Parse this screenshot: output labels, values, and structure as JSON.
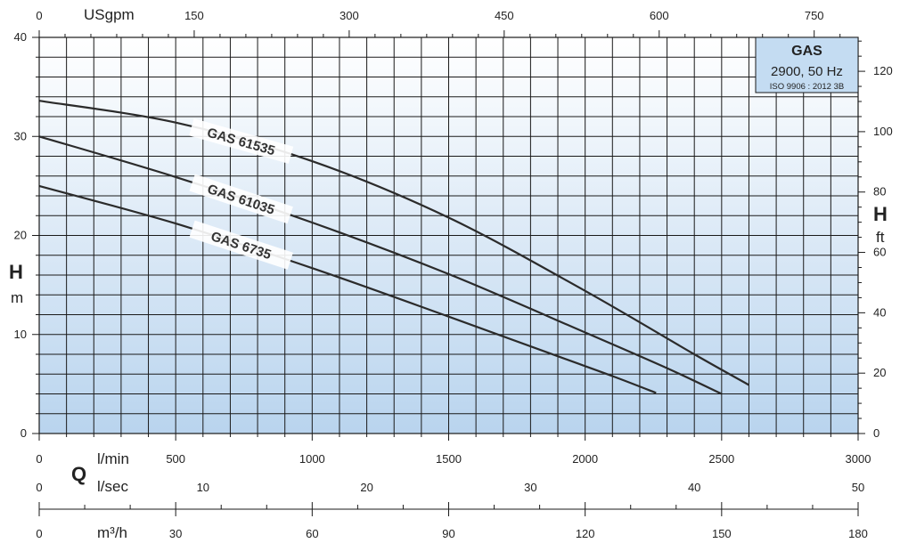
{
  "chart_data": {
    "type": "line",
    "title": "GAS",
    "subtitle": "2900, 50 Hz",
    "standard": "ISO 9906 : 2012 3B",
    "grid": true,
    "legend": "top-right",
    "x_primary": {
      "unit": "l/min",
      "range": [
        0,
        3000
      ],
      "ticks": [
        0,
        500,
        1000,
        1500,
        2000,
        2500,
        3000
      ]
    },
    "x_usgpm": {
      "unit": "USgpm",
      "ticks": [
        0,
        150,
        300,
        450,
        600,
        750
      ]
    },
    "x_lsec": {
      "unit": "l/sec",
      "ticks": [
        0,
        10,
        20,
        30,
        40,
        50
      ]
    },
    "x_m3h": {
      "unit": "m³/h",
      "ticks": [
        0,
        30,
        60,
        90,
        120,
        150,
        180
      ]
    },
    "y_left": {
      "letter": "H",
      "unit": "m",
      "range": [
        0,
        40
      ],
      "ticks": [
        0,
        10,
        20,
        30,
        40
      ]
    },
    "y_right": {
      "letter": "H",
      "unit": "ft",
      "ticks": [
        0,
        20,
        40,
        60,
        80,
        100,
        120
      ]
    },
    "q_letter": "Q",
    "series": [
      {
        "name": "GAS 61535",
        "x": [
          0,
          500,
          1000,
          1500,
          2000,
          2400,
          2600
        ],
        "y": [
          33.6,
          31.4,
          27.5,
          21.8,
          14.4,
          8.0,
          4.9
        ]
      },
      {
        "name": "GAS 61035",
        "x": [
          0,
          500,
          1000,
          1500,
          2000,
          2300,
          2500
        ],
        "y": [
          30.0,
          25.9,
          21.3,
          16.1,
          10.2,
          6.6,
          4.0
        ]
      },
      {
        "name": "GAS 6735",
        "x": [
          0,
          500,
          1000,
          1500,
          1900,
          2100,
          2260
        ],
        "y": [
          25.0,
          21.2,
          16.7,
          11.8,
          7.8,
          5.8,
          4.1
        ]
      }
    ]
  }
}
